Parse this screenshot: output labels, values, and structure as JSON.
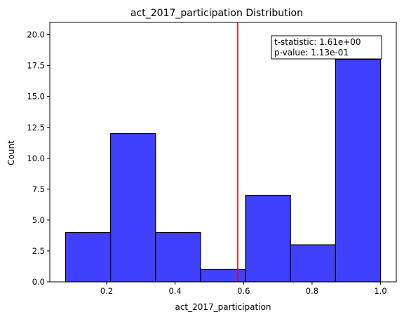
{
  "chart_data": {
    "type": "bar",
    "title": "act_2017_participation Distribution",
    "xlabel": "act_2017_participation",
    "ylabel": "Count",
    "bin_edges": [
      0.08,
      0.211429,
      0.342857,
      0.474286,
      0.605714,
      0.737143,
      0.868571,
      1.0
    ],
    "values": [
      4,
      12,
      4,
      1,
      7,
      3,
      18
    ],
    "xlim": [
      0.034,
      1.046
    ],
    "ylim": [
      0,
      21
    ],
    "xticks": [
      0.2,
      0.4,
      0.6,
      0.8,
      1.0
    ],
    "xtick_labels": [
      "0.2",
      "0.4",
      "0.6",
      "0.8",
      "1.0"
    ],
    "yticks": [
      0,
      2.5,
      5,
      7.5,
      10,
      12.5,
      15,
      17.5,
      20
    ],
    "ytick_labels": [
      "0.0",
      "2.5",
      "5.0",
      "7.5",
      "10.0",
      "12.5",
      "15.0",
      "17.5",
      "20.0"
    ],
    "reference_line_x": 0.5829,
    "colors": {
      "bar_fill": "#4040ff",
      "bar_edge": "#000000",
      "reference_line": "#ff0000"
    },
    "grid": false,
    "annotation": {
      "line1": "t-statistic:  1.61e+00",
      "line2": "p-value:  1.13e-01",
      "placement": "top-right"
    }
  }
}
